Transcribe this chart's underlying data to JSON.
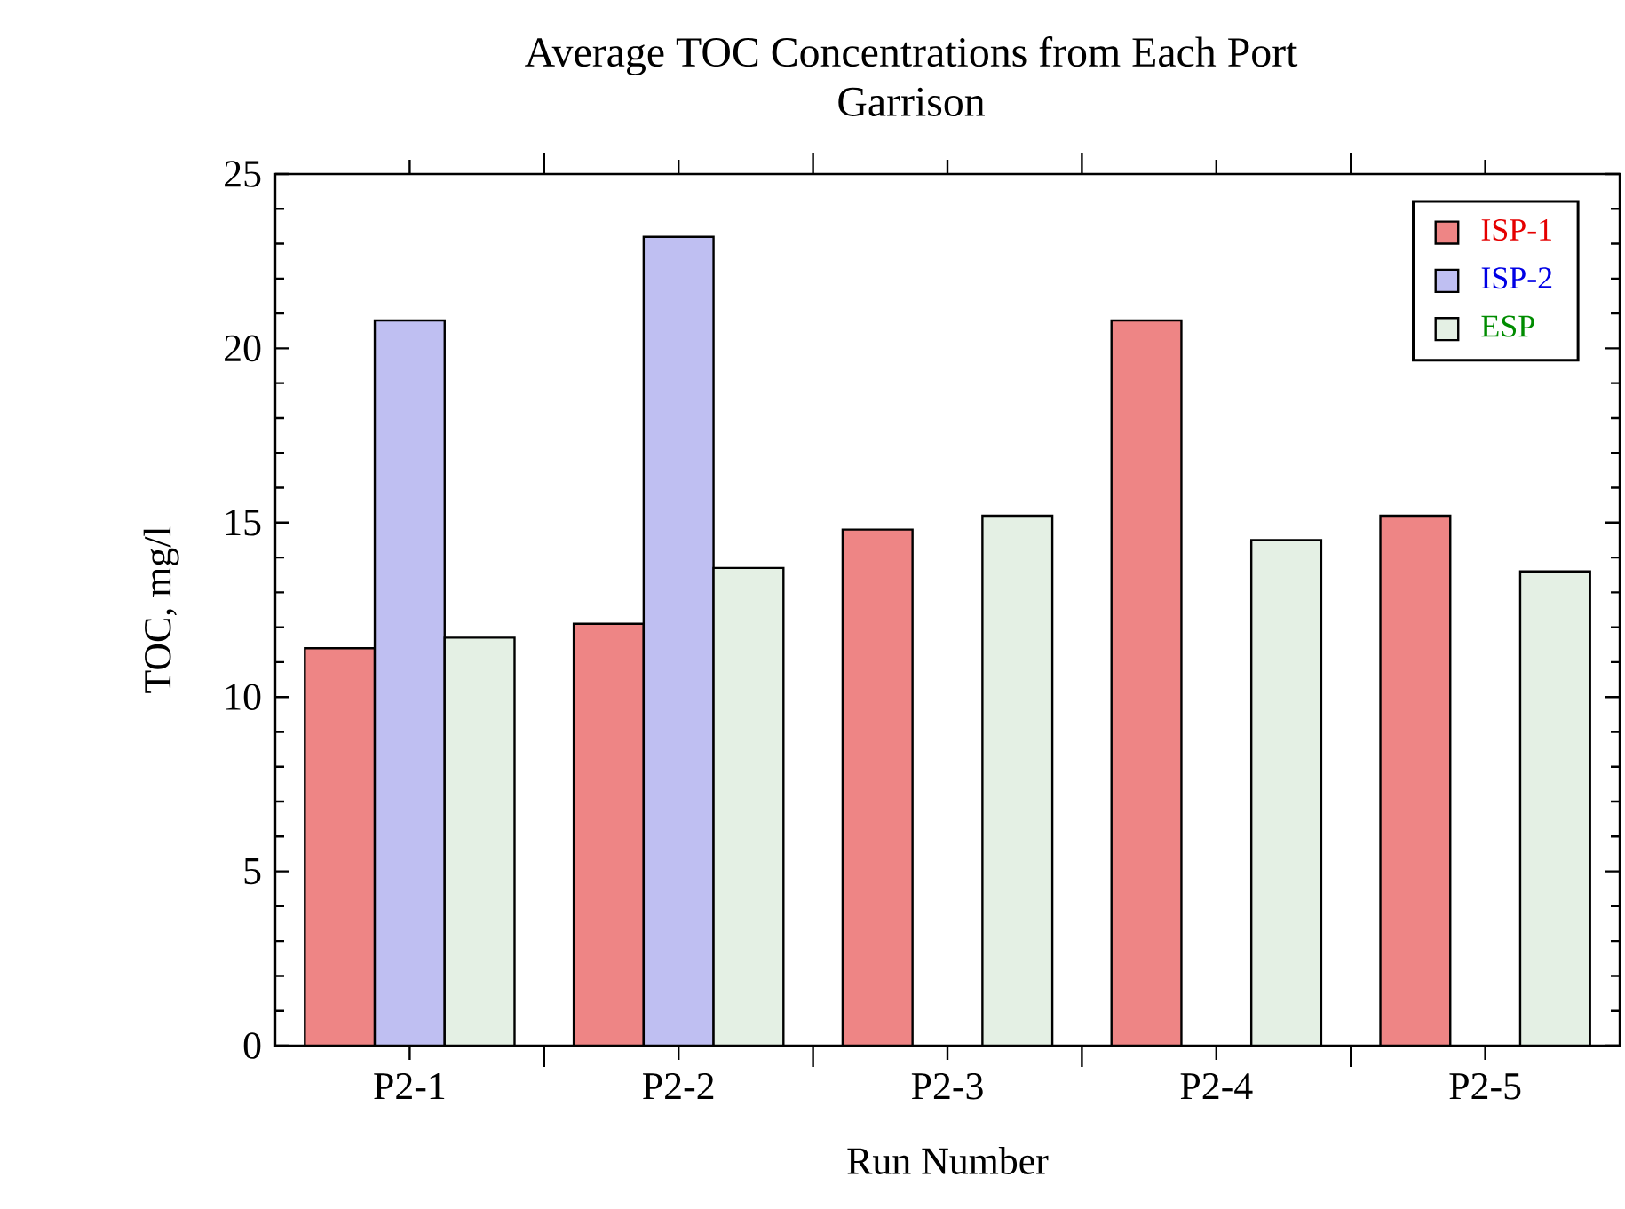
{
  "chart_data": {
    "type": "bar",
    "title": "Average TOC Concentrations from Each Port",
    "subtitle": "Garrison",
    "xlabel": "Run Number",
    "ylabel": "TOC, mg/l",
    "categories": [
      "P2-1",
      "P2-2",
      "P2-3",
      "P2-4",
      "P2-5"
    ],
    "series": [
      {
        "name": "ISP-1",
        "color": "#ee8585",
        "values": [
          11.4,
          12.1,
          14.8,
          20.8,
          15.2
        ]
      },
      {
        "name": "ISP-2",
        "color": "#bfbff2",
        "values": [
          20.8,
          23.2,
          null,
          null,
          null
        ]
      },
      {
        "name": "ESP",
        "color": "#e4f0e4",
        "values": [
          11.7,
          13.7,
          15.2,
          14.5,
          13.6
        ]
      }
    ],
    "ylim": [
      0,
      25
    ],
    "yticks": [
      0,
      5,
      10,
      15,
      20,
      25
    ],
    "legend": "top right",
    "grid": false
  }
}
